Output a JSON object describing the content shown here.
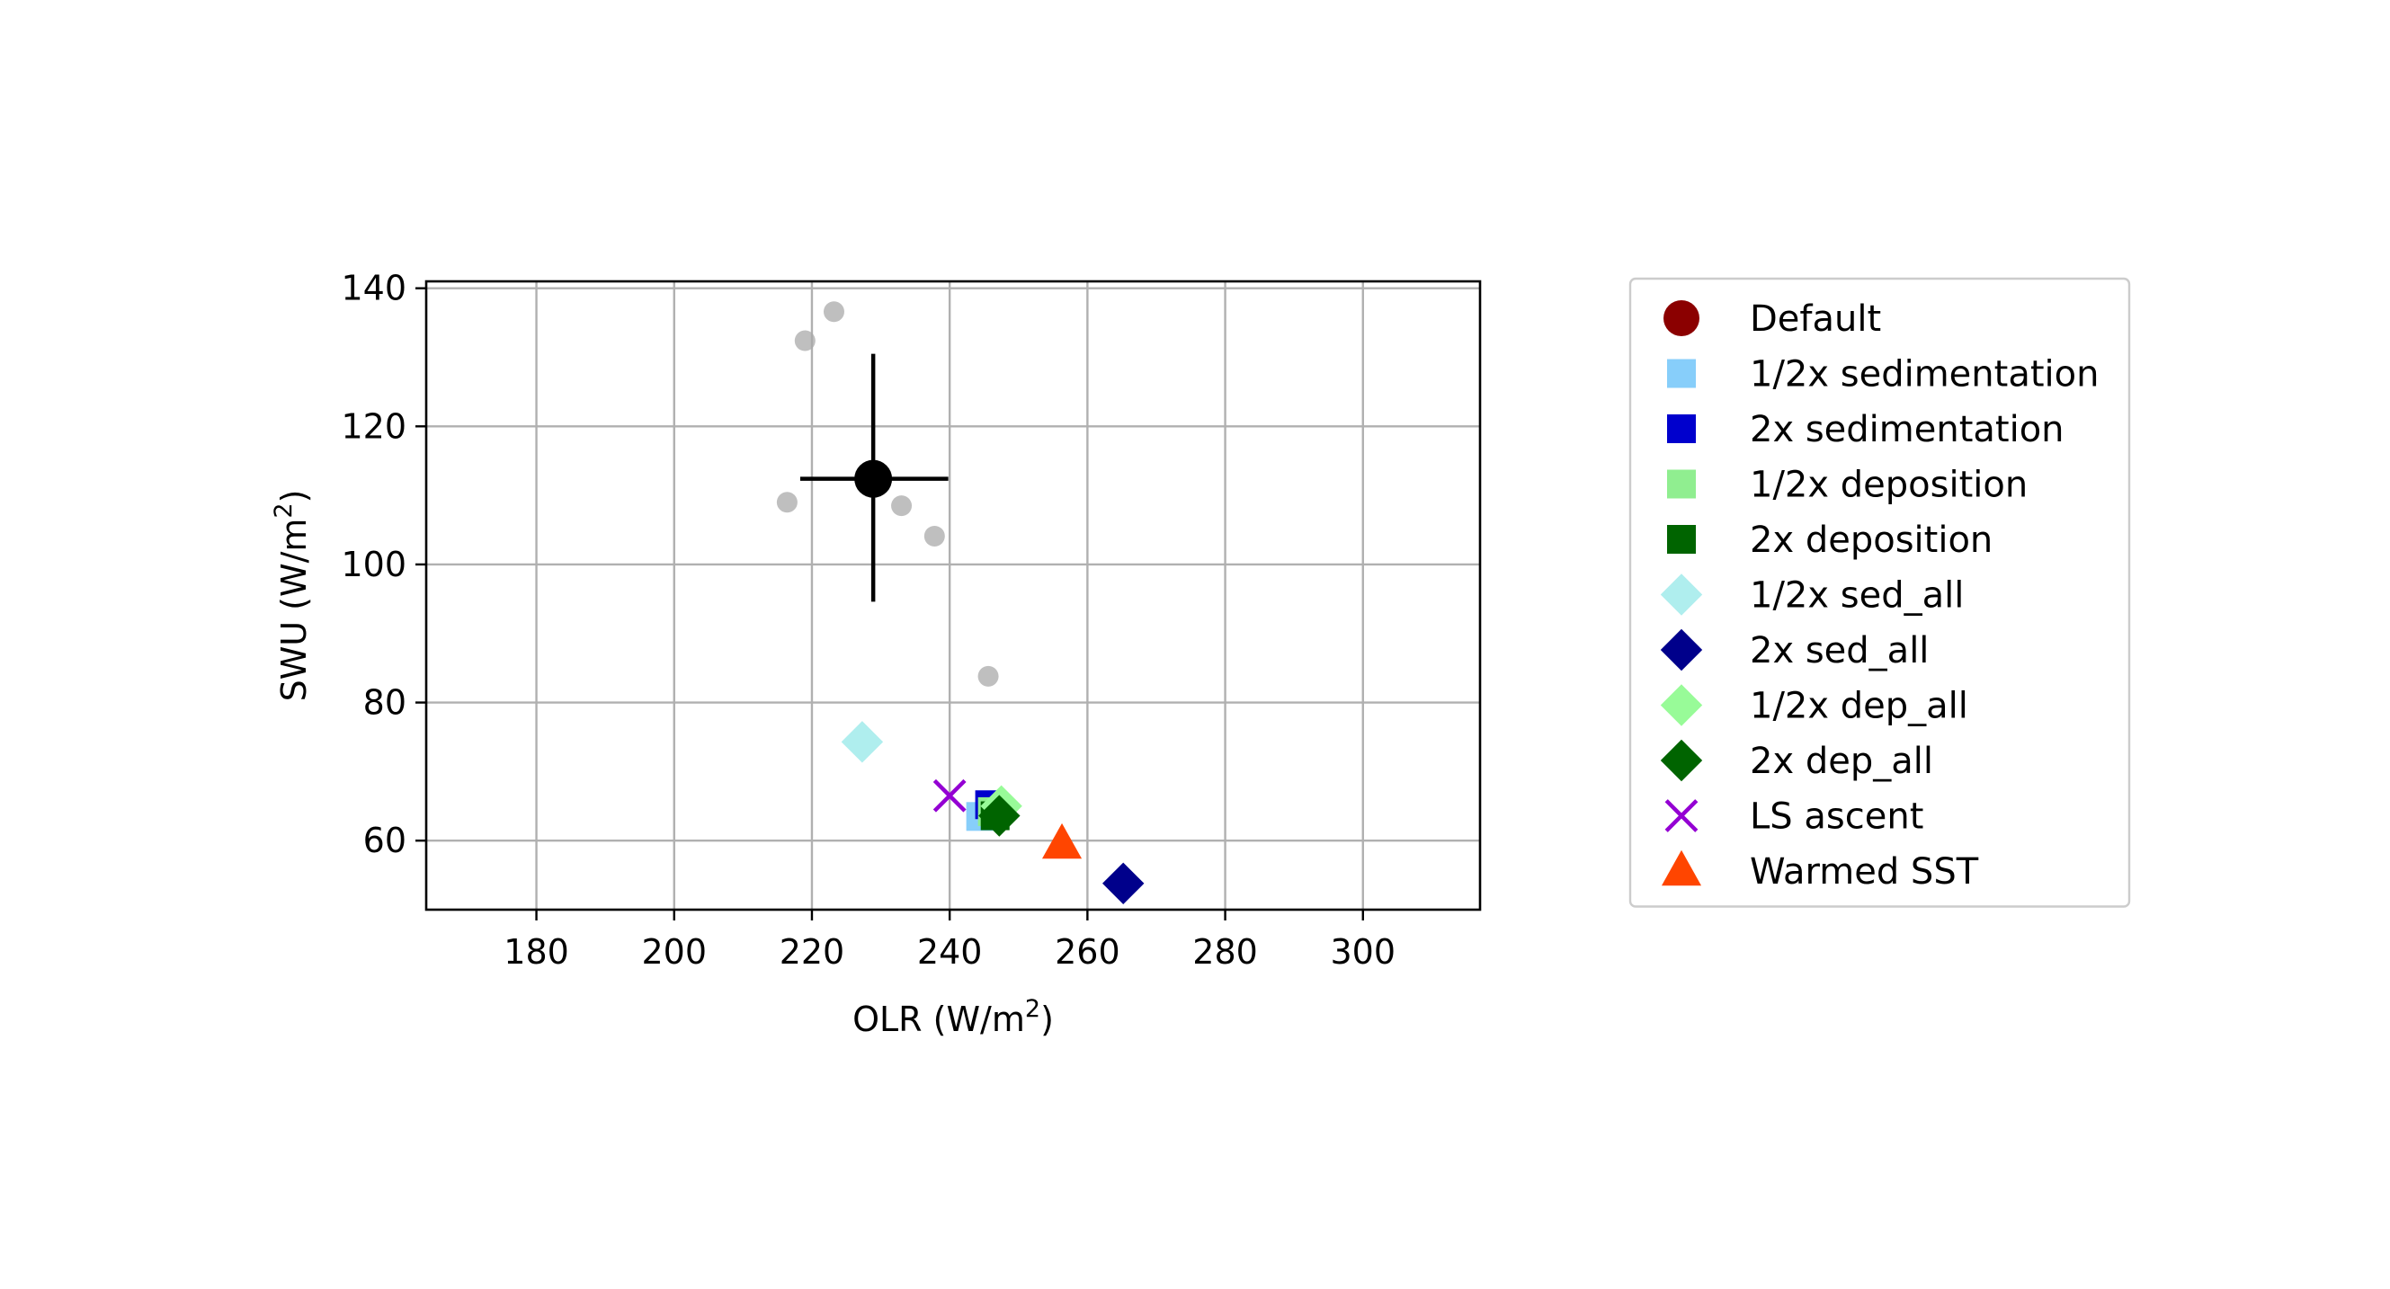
{
  "chart_data": {
    "type": "scatter",
    "title": "",
    "xlabel": "OLR (W/m",
    "xlabel_sup": "2",
    "xlabel_end": ")",
    "ylabel": "SWU (W/m",
    "ylabel_sup": "2",
    "ylabel_end": ")",
    "xlim": [
      164,
      317
    ],
    "ylim": [
      50,
      141
    ],
    "xticks": [
      180,
      200,
      220,
      240,
      260,
      280,
      300
    ],
    "yticks": [
      60,
      80,
      100,
      120,
      140
    ],
    "grid": true,
    "legend_position": "right, outside plot",
    "background_points": {
      "color": "#a9a9a9",
      "points": [
        {
          "x": 223.2,
          "y": 136.6
        },
        {
          "x": 219.0,
          "y": 132.4
        },
        {
          "x": 216.4,
          "y": 109.0
        },
        {
          "x": 233.0,
          "y": 108.5
        },
        {
          "x": 237.8,
          "y": 104.1
        },
        {
          "x": 245.6,
          "y": 83.8
        }
      ]
    },
    "mean_point": {
      "x": 228.9,
      "y": 112.4,
      "xerr": [
        218.3,
        239.8
      ],
      "yerr": [
        94.6,
        130.5
      ],
      "color": "#000000"
    },
    "series": [
      {
        "name": "Default",
        "marker": "circle",
        "color": "#8b0000",
        "points": []
      },
      {
        "name": "1/2x sedimentation",
        "marker": "square",
        "color": "#87cefa",
        "points": [
          {
            "x": 244.5,
            "y": 63.5
          }
        ]
      },
      {
        "name": "2x sedimentation",
        "marker": "square",
        "color": "#0000cd",
        "points": [
          {
            "x": 245.8,
            "y": 65.2
          }
        ]
      },
      {
        "name": "1/2x deposition",
        "marker": "square",
        "color": "#90ee90",
        "points": [
          {
            "x": 246.2,
            "y": 64.2
          }
        ]
      },
      {
        "name": "2x deposition",
        "marker": "square",
        "color": "#006400",
        "points": [
          {
            "x": 246.6,
            "y": 63.6
          }
        ]
      },
      {
        "name": "1/2x sed_all",
        "marker": "diamond",
        "color": "#afeeee",
        "points": [
          {
            "x": 227.3,
            "y": 74.3
          }
        ]
      },
      {
        "name": "2x sed_all",
        "marker": "diamond",
        "color": "#00008b",
        "points": [
          {
            "x": 265.2,
            "y": 53.8
          }
        ]
      },
      {
        "name": "1/2x dep_all",
        "marker": "diamond",
        "color": "#98fb98",
        "points": [
          {
            "x": 247.5,
            "y": 65.0
          }
        ]
      },
      {
        "name": "2x dep_all",
        "marker": "diamond",
        "color": "#006400",
        "points": [
          {
            "x": 247.2,
            "y": 63.6
          }
        ]
      },
      {
        "name": "LS ascent",
        "marker": "x",
        "color": "#9400d3",
        "points": [
          {
            "x": 240.0,
            "y": 66.5
          }
        ]
      },
      {
        "name": "Warmed SST",
        "marker": "triangle",
        "color": "#ff4500",
        "points": [
          {
            "x": 256.3,
            "y": 59.5
          }
        ]
      }
    ]
  }
}
